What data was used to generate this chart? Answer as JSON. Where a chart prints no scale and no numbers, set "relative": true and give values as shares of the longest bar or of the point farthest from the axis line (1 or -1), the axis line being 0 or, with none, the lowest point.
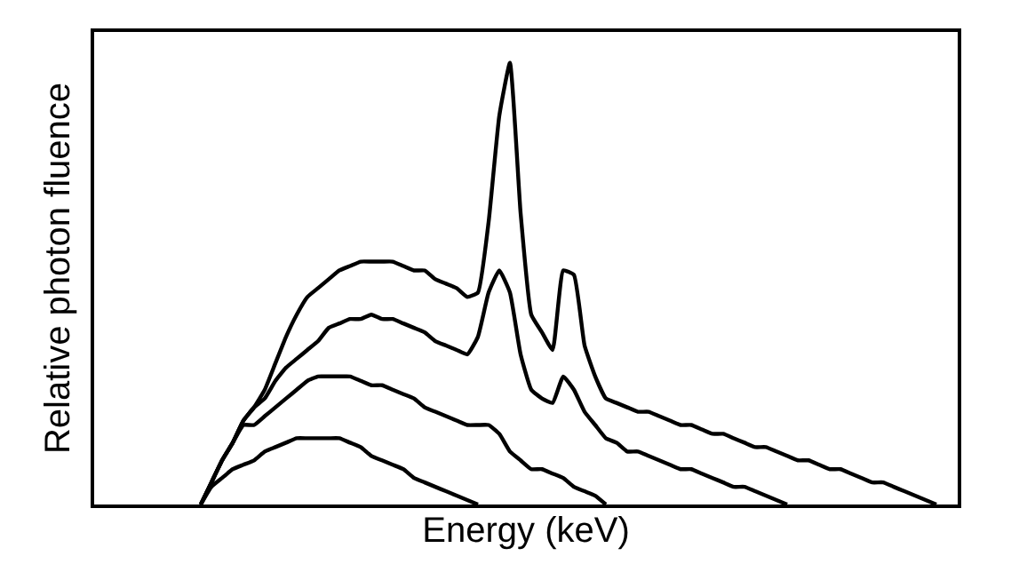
{
  "chart_data": {
    "type": "line",
    "relative": true,
    "xlabel": "Energy (keV)",
    "ylabel": "Relative photon fluence",
    "tick_labels": false,
    "marker": "none",
    "line_style": "solid",
    "categories": [
      null,
      null,
      null,
      null,
      null,
      null,
      null,
      null,
      null,
      null,
      null,
      null,
      null,
      null,
      null,
      null,
      null,
      null,
      null,
      null,
      null,
      null,
      null,
      null,
      null,
      null,
      null,
      null,
      null,
      null,
      null,
      null,
      null,
      null,
      null,
      null,
      null,
      null,
      null,
      null,
      null,
      null,
      null,
      null,
      null,
      null,
      null,
      null,
      null,
      null,
      null,
      null,
      null,
      null,
      null,
      null,
      null,
      null,
      null,
      null,
      null,
      null,
      null,
      null,
      null,
      null,
      null,
      null,
      null,
      null,
      null,
      null,
      null,
      null,
      null,
      null,
      null,
      null,
      null,
      null,
      null,
      null
    ],
    "series": [
      {
        "color": "#000000",
        "values": [
          null,
          null,
          null,
          null,
          null,
          null,
          null,
          null,
          null,
          null,
          0,
          0.05,
          0.1,
          0.14,
          0.19,
          0.22,
          0.26,
          0.32,
          0.38,
          0.43,
          0.47,
          0.49,
          0.51,
          0.53,
          0.54,
          0.55,
          0.55,
          0.55,
          0.55,
          0.54,
          0.53,
          0.53,
          0.51,
          0.5,
          0.49,
          0.47,
          0.48,
          0.64,
          0.88,
          1,
          0.66,
          0.43,
          0.39,
          0.35,
          0.53,
          0.52,
          0.36,
          0.29,
          0.24,
          0.23,
          0.22,
          0.21,
          0.21,
          0.2,
          0.19,
          0.18,
          0.18,
          0.17,
          0.16,
          0.16,
          0.15,
          0.14,
          0.13,
          0.13,
          0.12,
          0.11,
          0.1,
          0.1,
          0.09,
          0.08,
          0.08,
          0.07,
          0.06,
          0.05,
          0.05,
          0.04,
          0.03,
          0.02,
          0.01,
          0,
          null,
          null
        ]
      },
      {
        "color": "#000000",
        "values": [
          null,
          null,
          null,
          null,
          null,
          null,
          null,
          null,
          null,
          null,
          0,
          0.05,
          0.1,
          0.14,
          0.19,
          0.22,
          0.24,
          0.28,
          0.31,
          0.33,
          0.35,
          0.37,
          0.4,
          0.41,
          0.42,
          0.42,
          0.43,
          0.42,
          0.42,
          0.41,
          0.4,
          0.39,
          0.37,
          0.36,
          0.35,
          0.34,
          0.38,
          0.48,
          0.53,
          0.48,
          0.34,
          0.26,
          0.24,
          0.23,
          0.29,
          0.26,
          0.21,
          0.18,
          0.15,
          0.14,
          0.12,
          0.12,
          0.11,
          0.1,
          0.09,
          0.08,
          0.08,
          0.07,
          0.06,
          0.05,
          0.04,
          0.04,
          0.03,
          0.02,
          0.01,
          0,
          null,
          null,
          null,
          null,
          null,
          null,
          null,
          null,
          null,
          null,
          null,
          null,
          null,
          null,
          null,
          null
        ]
      },
      {
        "color": "#000000",
        "values": [
          null,
          null,
          null,
          null,
          null,
          null,
          null,
          null,
          null,
          null,
          0,
          0.05,
          0.1,
          0.14,
          0.18,
          0.18,
          0.2,
          0.22,
          0.24,
          0.26,
          0.28,
          0.29,
          0.29,
          0.29,
          0.29,
          0.28,
          0.27,
          0.27,
          0.26,
          0.25,
          0.24,
          0.22,
          0.21,
          0.2,
          0.19,
          0.18,
          0.18,
          0.18,
          0.16,
          0.12,
          0.1,
          0.08,
          0.08,
          0.07,
          0.06,
          0.04,
          0.03,
          0.02,
          0,
          null,
          null,
          null,
          null,
          null,
          null,
          null,
          null,
          null,
          null,
          null,
          null,
          null,
          null,
          null,
          null,
          null,
          null,
          null,
          null,
          null,
          null,
          null,
          null,
          null,
          null,
          null,
          null,
          null,
          null,
          null,
          null,
          null
        ]
      },
      {
        "color": "#000000",
        "values": [
          null,
          null,
          null,
          null,
          null,
          null,
          null,
          null,
          null,
          null,
          0,
          0.04,
          0.06,
          0.08,
          0.09,
          0.1,
          0.12,
          0.13,
          0.14,
          0.15,
          0.15,
          0.15,
          0.15,
          0.15,
          0.14,
          0.13,
          0.11,
          0.1,
          0.09,
          0.08,
          0.06,
          0.05,
          0.04,
          0.03,
          0.02,
          0.01,
          0,
          null,
          null,
          null,
          null,
          null,
          null,
          null,
          null,
          null,
          null,
          null,
          null,
          null,
          null,
          null,
          null,
          null,
          null,
          null,
          null,
          null,
          null,
          null,
          null,
          null,
          null,
          null,
          null,
          null,
          null,
          null,
          null,
          null,
          null,
          null,
          null,
          null,
          null,
          null,
          null,
          null,
          null,
          null,
          null,
          null
        ]
      }
    ]
  }
}
